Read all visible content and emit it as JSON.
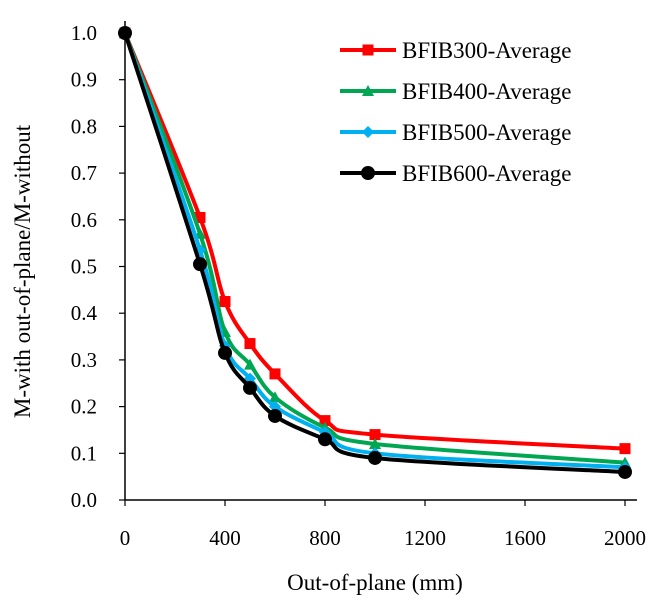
{
  "chart_data": {
    "type": "line",
    "title": "",
    "xlabel": "Out-of-plane (mm)",
    "ylabel": "M-with out-of-plane/M-without",
    "xlim": [
      0,
      2000
    ],
    "ylim": [
      0,
      1.0
    ],
    "x_ticks": [
      "0",
      "400",
      "800",
      "1200",
      "1600",
      "2000"
    ],
    "y_ticks": [
      "0.0",
      "0.1",
      "0.2",
      "0.3",
      "0.4",
      "0.5",
      "0.6",
      "0.7",
      "0.8",
      "0.9",
      "1.0"
    ],
    "legend_position": "top-right",
    "grid": false,
    "series": [
      {
        "name": "BFIB300-Average",
        "color": "#ff0000",
        "marker": "square",
        "x": [
          0,
          300,
          400,
          500,
          600,
          800,
          1000,
          2000
        ],
        "y": [
          1.0,
          0.605,
          0.425,
          0.335,
          0.27,
          0.17,
          0.14,
          0.11
        ]
      },
      {
        "name": "BFIB400-Average",
        "color": "#00a651",
        "marker": "triangle",
        "x": [
          0,
          300,
          400,
          500,
          600,
          800,
          1000,
          2000
        ],
        "y": [
          1.0,
          0.57,
          0.36,
          0.29,
          0.22,
          0.155,
          0.12,
          0.08
        ]
      },
      {
        "name": "BFIB500-Average",
        "color": "#00b0f0",
        "marker": "diamond",
        "x": [
          0,
          300,
          400,
          500,
          600,
          800,
          1000,
          2000
        ],
        "y": [
          1.0,
          0.535,
          0.33,
          0.26,
          0.2,
          0.145,
          0.1,
          0.07
        ]
      },
      {
        "name": "BFIB600-Average",
        "color": "#000000",
        "marker": "circle",
        "x": [
          0,
          300,
          400,
          500,
          600,
          800,
          1000,
          2000
        ],
        "y": [
          1.0,
          0.505,
          0.315,
          0.24,
          0.18,
          0.13,
          0.09,
          0.06
        ]
      }
    ]
  }
}
